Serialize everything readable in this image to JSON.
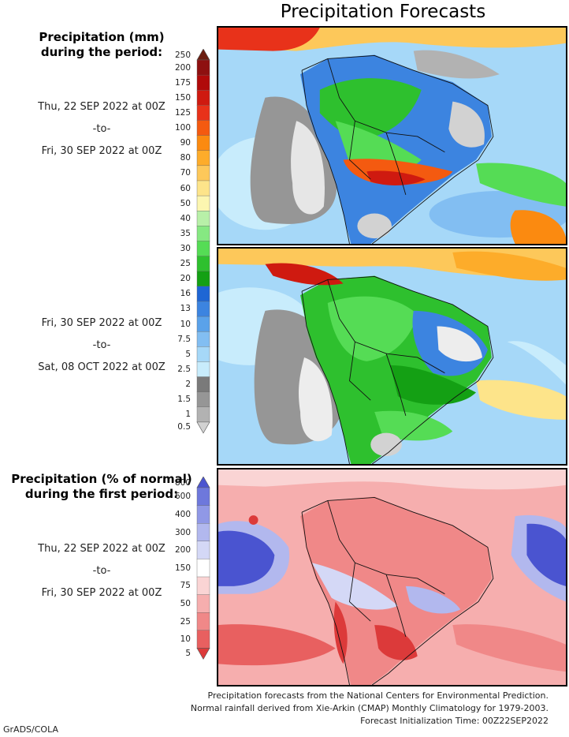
{
  "title": "Precipitation Forecasts",
  "section1": {
    "heading_line1": "Precipitation (mm)",
    "heading_line2": "during the period:",
    "period_a": {
      "start": "Thu, 22 SEP 2022 at 00Z",
      "sep": "-to-",
      "end": "Fri, 30 SEP 2022 at 00Z"
    },
    "period_b": {
      "start": "Fri, 30 SEP 2022 at 00Z",
      "sep": "-to-",
      "end": "Sat, 08 OCT 2022 at 00Z"
    }
  },
  "mm_scale": {
    "labels": [
      "250",
      "200",
      "175",
      "150",
      "125",
      "100",
      "90",
      "80",
      "70",
      "60",
      "50",
      "40",
      "35",
      "30",
      "25",
      "20",
      "16",
      "13",
      "10",
      "7.5",
      "5",
      "2.5",
      "2",
      "1.5",
      "1",
      "0.5"
    ],
    "colors": [
      "#6b1d10",
      "#8e1010",
      "#b00a0a",
      "#cf1a10",
      "#e8321a",
      "#f45a10",
      "#fb8a10",
      "#fdac2a",
      "#fdc85a",
      "#fde48a",
      "#fcf6b0",
      "#b8f0a8",
      "#86e882",
      "#55dc55",
      "#2ec02e",
      "#14a014",
      "#1e66d4",
      "#3c84e0",
      "#5aa2ea",
      "#82bef2",
      "#a6d8f8",
      "#c8ecfc",
      "#7a7a7a",
      "#969696",
      "#b2b2b2",
      "#d2d2d2"
    ]
  },
  "section2": {
    "heading_line1": "Precipitation (% of normal)",
    "heading_line2": "during the first period:",
    "period": {
      "start": "Thu, 22 SEP 2022 at 00Z",
      "sep": "-to-",
      "end": "Fri, 30 SEP 2022 at 00Z"
    }
  },
  "pct_scale": {
    "labels": [
      "800",
      "600",
      "400",
      "300",
      "200",
      "150",
      "75",
      "50",
      "25",
      "10",
      "5"
    ],
    "colors": [
      "#4a54d0",
      "#6e78dc",
      "#9098e6",
      "#b2b8ee",
      "#d4d8f6",
      "#ffffff",
      "#fad4d4",
      "#f6aeae",
      "#f08888",
      "#e86060",
      "#dc3a3a"
    ]
  },
  "credits": {
    "line1": "Precipitation forecasts from the National Centers for Environmental Prediction.",
    "line2": "Normal rainfall derived from Xie-Arkin (CMAP) Monthly Climatology for 1979-2003.",
    "line3": "Forecast Initialization Time: 00Z22SEP2022"
  },
  "footer_tag": "GrADS/COLA"
}
